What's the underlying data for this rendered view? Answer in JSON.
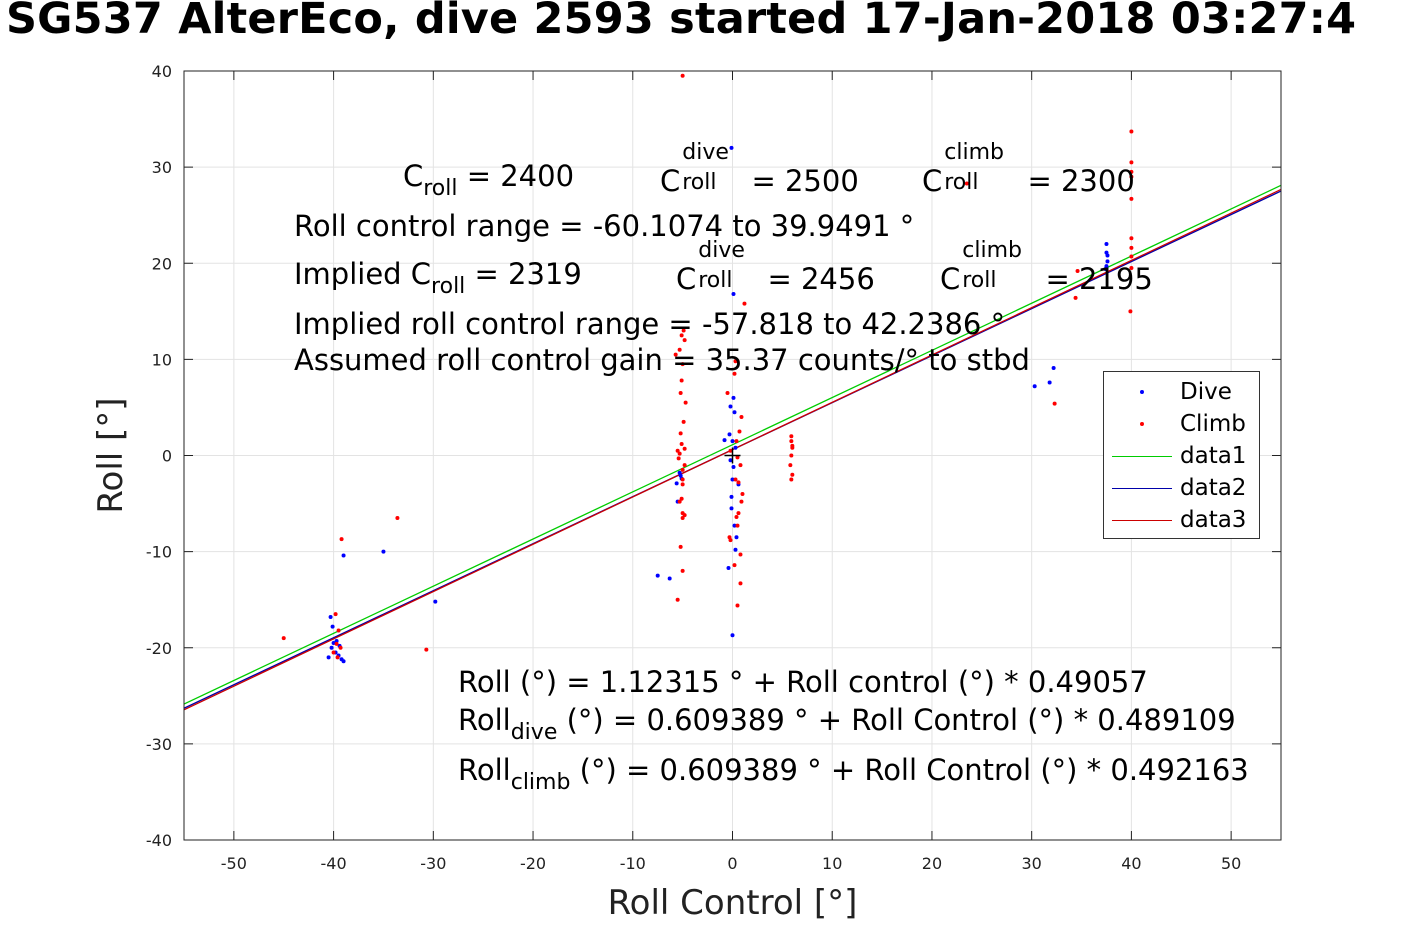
{
  "title": "SG537 AlterEco, dive 2593 started 17-Jan-2018 03:27:4",
  "annotations": {
    "c_roll": "C",
    "c_roll_sub": "roll",
    "c_roll_val": " = 2400",
    "c_dive_sup": "dive",
    "c_dive_sub": "roll",
    "c_dive_val": " = 2500",
    "c_climb_sup": "climb",
    "c_climb_sub": "roll",
    "c_climb_val": " = 2300",
    "range": "Roll control range = -60.1074 to 39.9491 °",
    "implied_prefix": "Implied C",
    "implied_sub": "roll",
    "implied_val": " = 2319",
    "implied_dive_sup": "dive",
    "implied_dive_sub": "roll",
    "implied_dive_val": " = 2456",
    "implied_climb_sup": "climb",
    "implied_climb_sub": "roll",
    "implied_climb_val": " = 2195",
    "implied_range": "Implied roll control range = -57.818 to 42.2386 °",
    "gain": "Assumed roll control gain = 35.37 counts/° to stbd",
    "fit_all": "Roll (°) = 1.12315 ° + Roll control (°) * 0.49057",
    "fit_dive_prefix": "Roll",
    "fit_dive_sub": "dive",
    "fit_dive_rest": " (°) = 0.609389 ° + Roll Control (°) * 0.489109",
    "fit_climb_prefix": "Roll",
    "fit_climb_sub": "climb",
    "fit_climb_rest": " (°) = 0.609389 ° + Roll Control (°) * 0.492163"
  },
  "legend": [
    {
      "label": "Dive",
      "color": "#0000ff",
      "kind": "marker"
    },
    {
      "label": "Climb",
      "color": "#ff0000",
      "kind": "marker"
    },
    {
      "label": "data1",
      "color": "#00cc00",
      "kind": "line"
    },
    {
      "label": "data2",
      "color": "#0000aa",
      "kind": "line"
    },
    {
      "label": "data3",
      "color": "#cc0000",
      "kind": "line"
    }
  ],
  "chart_data": {
    "type": "scatter",
    "xlabel": "Roll Control [°]",
    "ylabel": "Roll [°]",
    "xlim": [
      -55,
      55
    ],
    "ylim": [
      -40,
      40
    ],
    "xticks": [
      -50,
      -40,
      -30,
      -20,
      -10,
      0,
      10,
      20,
      30,
      40,
      50
    ],
    "yticks": [
      -40,
      -30,
      -20,
      -10,
      0,
      10,
      20,
      30,
      40
    ],
    "grid": true,
    "legend_position": "right",
    "series": [
      {
        "name": "Dive",
        "kind": "scatter",
        "color": "#0000ff",
        "x": [
          -40.5,
          -40.2,
          -40,
          -40.3,
          -39.8,
          -39.5,
          -39.2,
          -39,
          -39.4,
          -40.1,
          -39,
          -35,
          -29.8,
          -39.7,
          -7.5,
          -6.3,
          -5.5,
          -5.2,
          -5.3,
          -5.6,
          -5.1,
          -0.1,
          0.1,
          0.2,
          -0.3,
          0,
          0.3,
          -0.2,
          0.1,
          0,
          -0.1,
          0.2,
          0.4,
          -0.4,
          0,
          0.1,
          -0.2,
          -0.8,
          0.6,
          -0.1,
          0.3,
          30.3,
          31.8,
          37.5,
          37.6,
          37.5,
          37.4,
          37.6,
          37.5,
          32.2
        ],
        "y": [
          -21,
          -20,
          -19.5,
          -16.8,
          -20.5,
          -20.8,
          -21.2,
          -21.4,
          -19.8,
          -17.8,
          -10.4,
          -10,
          -15.2,
          -19.3,
          -12.5,
          -12.8,
          -4.8,
          -2.1,
          -1.8,
          -2.9,
          -2.4,
          32,
          16.8,
          4.5,
          2.2,
          1.5,
          0.8,
          -0.5,
          -1.2,
          -2.5,
          -5.5,
          -7.3,
          -8.5,
          -11.7,
          -18.7,
          6,
          5.1,
          1.6,
          -3,
          -4.3,
          -9.8,
          7.2,
          7.6,
          22,
          20.2,
          19.7,
          19.4,
          20.8,
          21.1,
          9.1
        ]
      },
      {
        "name": "Climb",
        "kind": "scatter",
        "color": "#ff0000",
        "x": [
          -45,
          -39.8,
          -39.2,
          -39.5,
          -39.7,
          -39.3,
          -40,
          -39.6,
          -33.6,
          -30.7,
          -5.5,
          -5,
          -5.2,
          -5,
          -4.8,
          -5.1,
          -5,
          -4.8,
          -5.3,
          -5.5,
          -5.1,
          -4.9,
          -4.7,
          -5.2,
          -5.1,
          -5,
          -5.7,
          -5.3,
          -4.8,
          -5.1,
          -4.9,
          -5,
          -5,
          -5.3,
          -5,
          -5.4,
          -4.8,
          -5.2,
          -5,
          1.2,
          0.5,
          0.8,
          0.2,
          -0.3,
          0.6,
          1,
          0.3,
          0.8,
          -0.2,
          0.4,
          0.7,
          0.9,
          -0.5,
          0.2,
          0.3,
          0.5,
          0.6,
          0.9,
          0.4,
          0.5,
          -0.2,
          0.8,
          5.9,
          5.9,
          6,
          5.9,
          5.8,
          6,
          5.9,
          6,
          23.5,
          34.4,
          34.6,
          40,
          40,
          40,
          40,
          40,
          40,
          40,
          39.9,
          40,
          32.3,
          40
        ],
        "y": [
          -19,
          -16.5,
          -8.7,
          -18.2,
          -19.6,
          -20,
          -20.5,
          -21,
          -6.5,
          -20.2,
          -15,
          -12,
          -9.5,
          -6.5,
          -6.2,
          -4.5,
          -2.5,
          -1,
          0.2,
          0.5,
          1.2,
          3.5,
          5.5,
          6.5,
          7.8,
          9.5,
          10.5,
          11,
          12,
          12.5,
          13,
          -1.5,
          -3,
          -4.8,
          -6,
          -0.3,
          0.7,
          2.3,
          39.5,
          15.8,
          -15.6,
          -13.3,
          -11.4,
          -8.5,
          -6,
          -4,
          -2.5,
          -1,
          0.5,
          1.5,
          2.5,
          4,
          6.5,
          8.5,
          9.8,
          -0.2,
          -2.8,
          -4.8,
          -6.4,
          -7.3,
          -8.8,
          -10.3,
          2,
          1.5,
          1,
          0,
          -1,
          -2,
          -2.5,
          0.8,
          28.3,
          16.4,
          19.2,
          33.7,
          30.5,
          29.5,
          29,
          22.6,
          21.6,
          20.7,
          15,
          19.5,
          5.4,
          26.7
        ]
      },
      {
        "name": "data1",
        "kind": "line",
        "color": "#00cc00",
        "intercept": 1.12315,
        "slope": 0.49057
      },
      {
        "name": "data2",
        "kind": "line",
        "color": "#0000aa",
        "intercept": 0.609389,
        "slope": 0.489109
      },
      {
        "name": "data3",
        "kind": "line",
        "color": "#cc0000",
        "intercept": 0.609389,
        "slope": 0.492163
      }
    ]
  }
}
